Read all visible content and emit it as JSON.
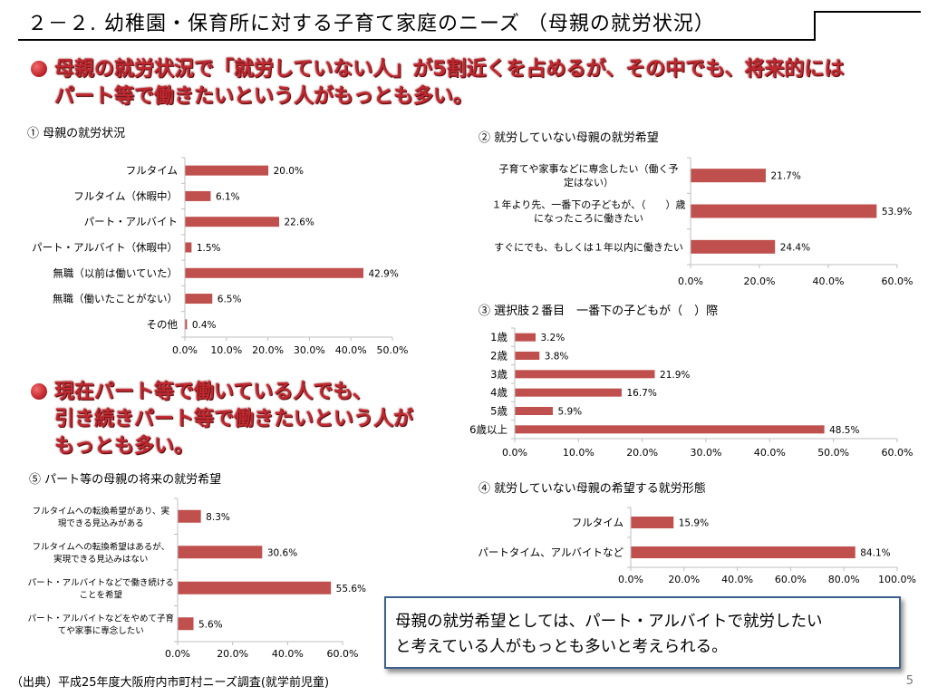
{
  "slide": {
    "title": "２－２. 幼稚園・保育所に対する子育て家庭のニーズ （母親の就労状況）",
    "headline1_line1": "母親の就労状況で「就労していない人」が5割近くを占めるが、その中でも、将来的には",
    "headline1_line2": "パート等で働きたいという人がもっとも多い。",
    "headline2_line1": "現在パート等で働いている人でも、",
    "headline2_line2": "引き続きパート等で働きたいという人が",
    "headline2_line3": "もっとも多い。",
    "note_line1": "母親の就労希望としては、パート・アルバイトで就労したい",
    "note_line2": "と考えている人がもっとも多いと考えられる。",
    "source": "（出典）平成25年度大阪府内市町村ニーズ調査(就学前児童)",
    "page_number": "5"
  },
  "colors": {
    "bar": "#c0504d",
    "axis": "#bfbfbf",
    "headline": "#c0282f"
  },
  "chart_labels": {
    "c1": "① 母親の就労状況",
    "c2": "② 就労していない母親の就労希望",
    "c3": "③ 選択肢２番目　一番下の子どもが（　）際",
    "c4": "④ 就労していない母親の希望する就労形態",
    "c5": "⑤ パート等の母親の将来の就労希望"
  },
  "chart_data": [
    {
      "id": "c1",
      "type": "bar",
      "orientation": "horizontal",
      "title": "① 母親の就労状況",
      "categories": [
        [
          "フルタイム"
        ],
        [
          "フルタイム（休暇中）"
        ],
        [
          "パート・アルバイト"
        ],
        [
          "パート・アルバイト（休暇中）"
        ],
        [
          "無職（以前は働いていた）"
        ],
        [
          "無職（働いたことがない）"
        ],
        [
          "その他"
        ]
      ],
      "values": [
        20.0,
        6.1,
        22.6,
        1.5,
        42.9,
        6.5,
        0.4
      ],
      "value_labels": [
        "20.0%",
        "6.1%",
        "22.6%",
        "1.5%",
        "42.9%",
        "6.5%",
        "0.4%"
      ],
      "xlim": [
        0,
        50
      ],
      "ticks": [
        "0.0%",
        "10.0%",
        "20.0%",
        "30.0%",
        "40.0%",
        "50.0%"
      ]
    },
    {
      "id": "c2",
      "type": "bar",
      "orientation": "horizontal",
      "title": "② 就労していない母親の就労希望",
      "categories": [
        [
          "子育てや家事などに専念したい（働く予",
          "定はない）"
        ],
        [
          "１年より先、一番下の子どもが、（　　）歳",
          "になったころに働きたい"
        ],
        [
          "すぐにでも、もしくは１年以内に働きたい"
        ]
      ],
      "values": [
        21.7,
        53.9,
        24.4
      ],
      "value_labels": [
        "21.7%",
        "53.9%",
        "24.4%"
      ],
      "xlim": [
        0,
        60
      ],
      "ticks": [
        "0.0%",
        "20.0%",
        "40.0%",
        "60.0%"
      ]
    },
    {
      "id": "c3",
      "type": "bar",
      "orientation": "horizontal",
      "title": "③ 選択肢２番目　一番下の子どもが（　）際",
      "categories": [
        [
          "1歳"
        ],
        [
          "2歳"
        ],
        [
          "3歳"
        ],
        [
          "4歳"
        ],
        [
          "5歳"
        ],
        [
          "6歳以上"
        ]
      ],
      "values": [
        3.2,
        3.8,
        21.9,
        16.7,
        5.9,
        48.5
      ],
      "value_labels": [
        "3.2%",
        "3.8%",
        "21.9%",
        "16.7%",
        "5.9%",
        "48.5%"
      ],
      "xlim": [
        0,
        60
      ],
      "ticks": [
        "0.0%",
        "10.0%",
        "20.0%",
        "30.0%",
        "40.0%",
        "50.0%",
        "60.0%"
      ]
    },
    {
      "id": "c4",
      "type": "bar",
      "orientation": "horizontal",
      "title": "④ 就労していない母親の希望する就労形態",
      "categories": [
        [
          "フルタイム"
        ],
        [
          "パートタイム、アルバイトなど"
        ]
      ],
      "values": [
        15.9,
        84.1
      ],
      "value_labels": [
        "15.9%",
        "84.1%"
      ],
      "xlim": [
        0,
        100
      ],
      "ticks": [
        "0.0%",
        "20.0%",
        "40.0%",
        "60.0%",
        "80.0%",
        "100.0%"
      ]
    },
    {
      "id": "c5",
      "type": "bar",
      "orientation": "horizontal",
      "title": "⑤ パート等の母親の将来の就労希望",
      "categories": [
        [
          "フルタイムへの転換希望があり、実",
          "現できる見込みがある"
        ],
        [
          "フルタイムへの転換希望はあるが、",
          "実現できる見込みはない"
        ],
        [
          "パート・アルバイトなどで働き続ける",
          "ことを希望"
        ],
        [
          "パート・アルバイトなどをやめて子育",
          "てや家事に専念したい"
        ]
      ],
      "values": [
        8.3,
        30.6,
        55.6,
        5.6
      ],
      "value_labels": [
        "8.3%",
        "30.6%",
        "55.6%",
        "5.6%"
      ],
      "xlim": [
        0,
        60
      ],
      "ticks": [
        "0.0%",
        "20.0%",
        "40.0%",
        "60.0%"
      ]
    }
  ]
}
